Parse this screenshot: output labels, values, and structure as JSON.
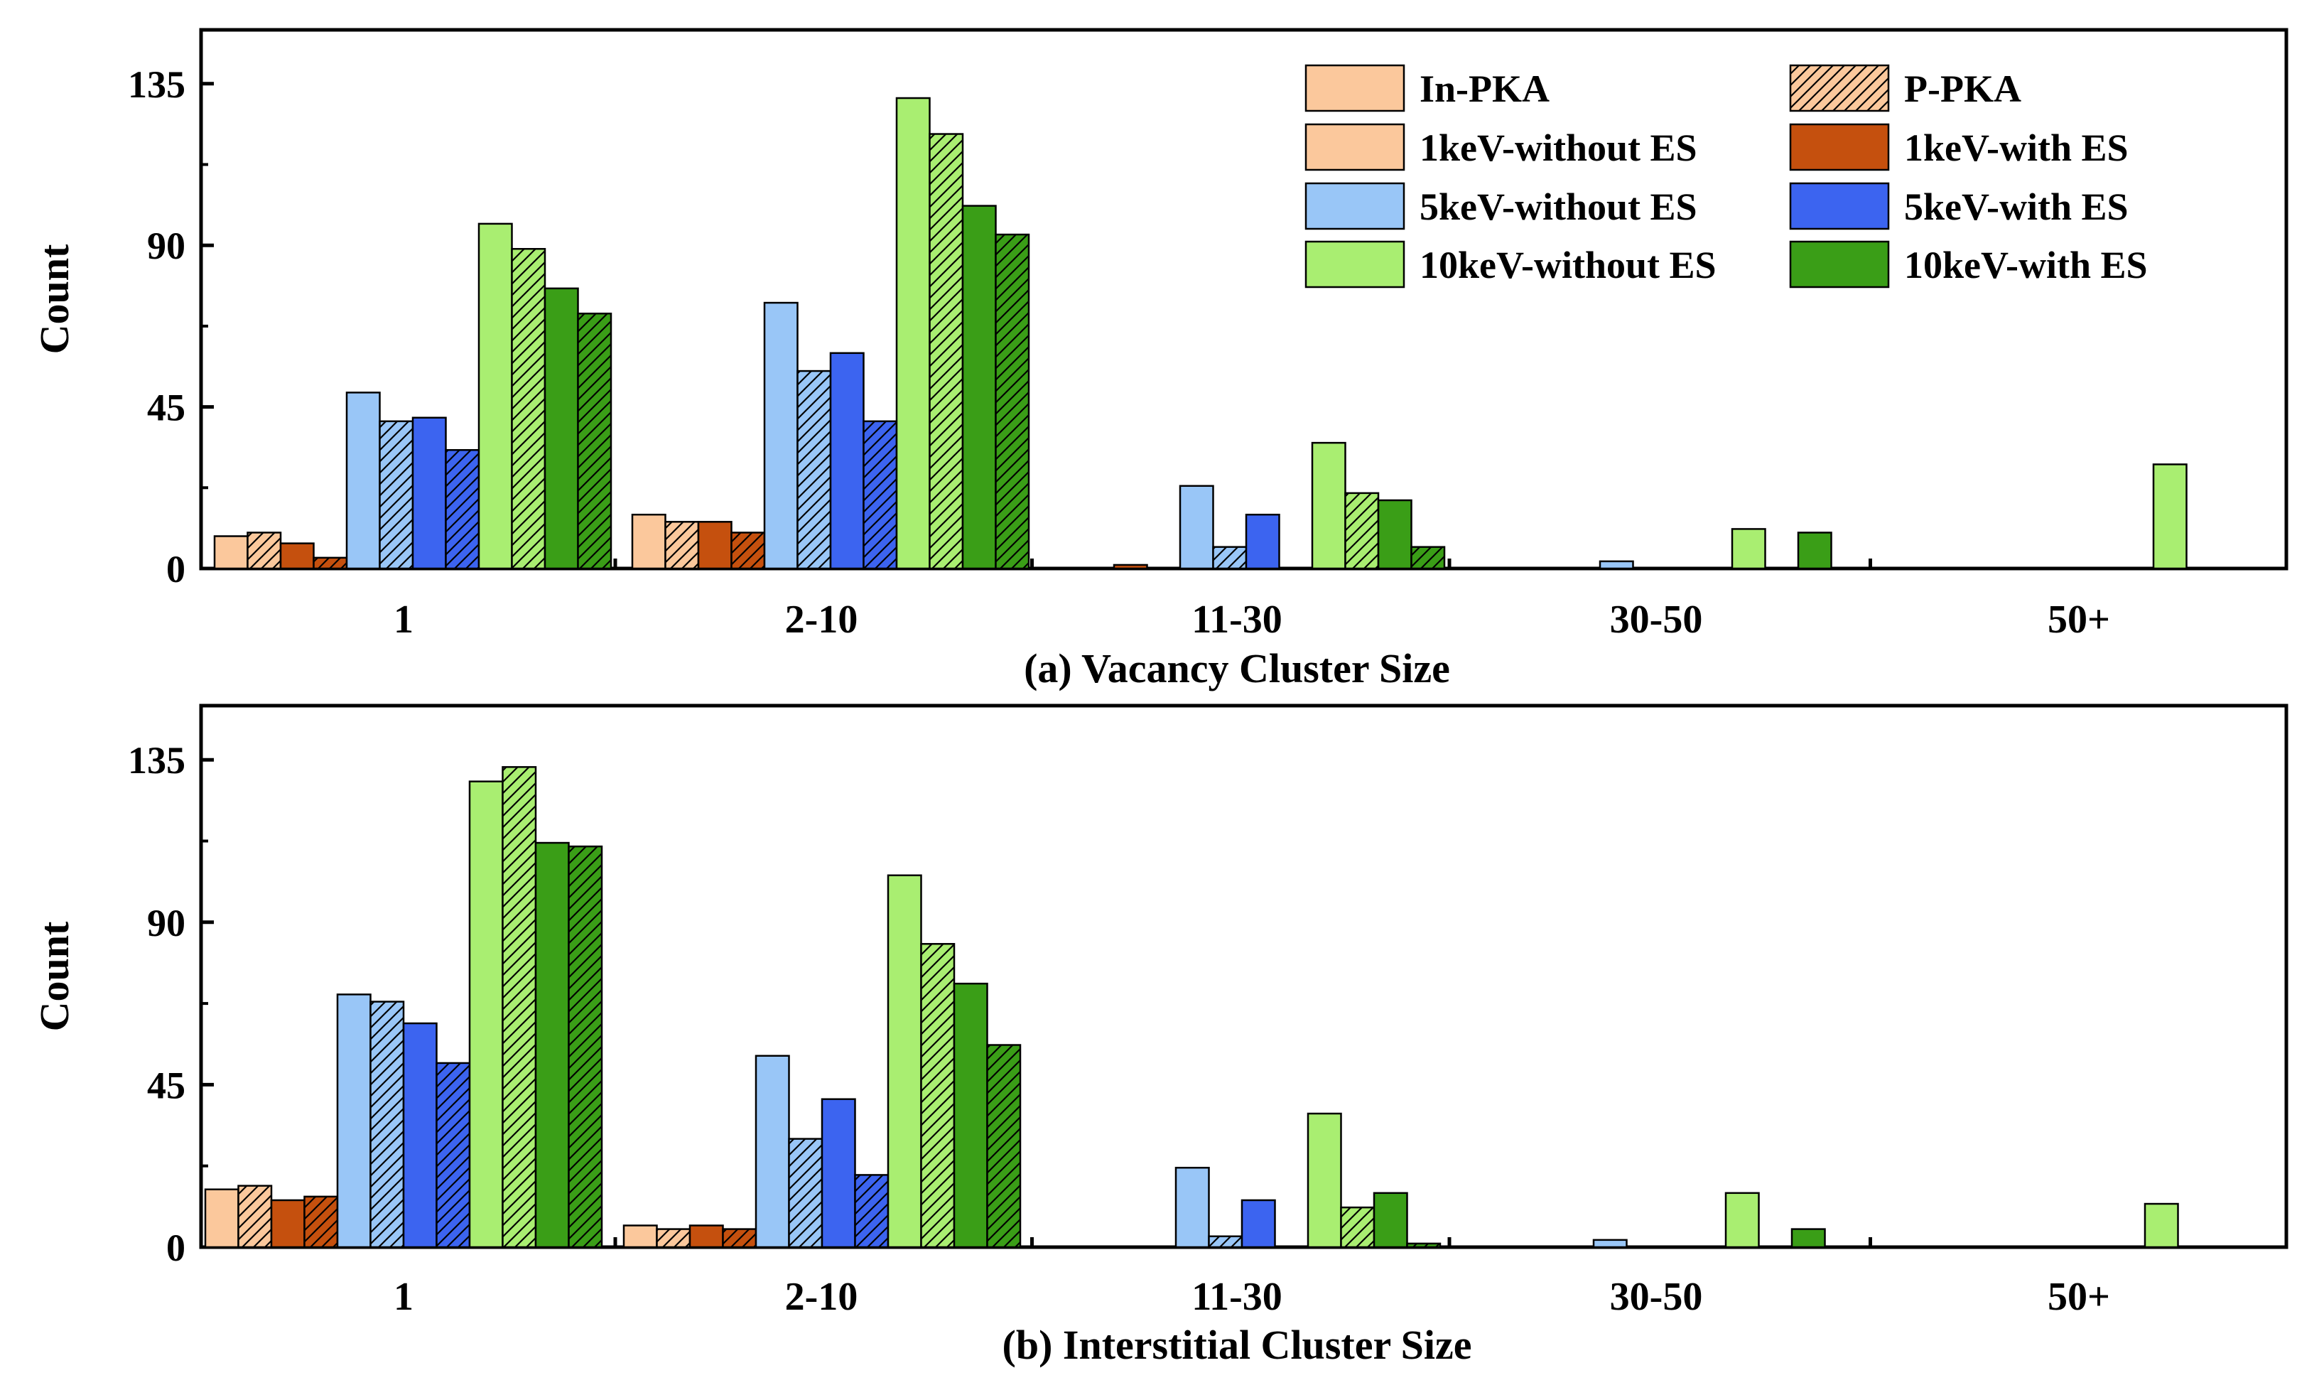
{
  "colors": {
    "c1_without": "#FBC89C",
    "c1_with": "#C5500E",
    "c5_without": "#99C6F7",
    "c5_with": "#3C64F0",
    "c10_without": "#A9EE71",
    "c10_with": "#3A9E17",
    "axis": "#000000"
  },
  "legend": {
    "items": [
      {
        "label": "In-PKA",
        "color_key": "c1_without",
        "hatch": false
      },
      {
        "label": "P-PKA",
        "color_key": "c1_without",
        "hatch": true
      },
      {
        "label": "1keV-without ES",
        "color_key": "c1_without",
        "hatch": false
      },
      {
        "label": "1keV-with ES",
        "color_key": "c1_with",
        "hatch": false
      },
      {
        "label": "5keV-without ES",
        "color_key": "c5_without",
        "hatch": false
      },
      {
        "label": "5keV-with ES",
        "color_key": "c5_with",
        "hatch": false
      },
      {
        "label": "10keV-without ES",
        "color_key": "c10_without",
        "hatch": false
      },
      {
        "label": "10keV-with ES",
        "color_key": "c10_with",
        "hatch": false
      }
    ]
  },
  "chart_data": [
    {
      "type": "bar",
      "title": "(a) Vacancy Cluster Size",
      "xlabel": "(a) Vacancy Cluster Size",
      "ylabel": "Count",
      "ylim": [
        0,
        150
      ],
      "yticks": [
        0,
        45,
        90,
        135
      ],
      "categories": [
        "1",
        "2-10",
        "11-30",
        "30-50",
        "50+"
      ],
      "series": [
        {
          "name": "1keV-without ES (In-PKA)",
          "color_key": "c1_without",
          "hatch": false,
          "values": [
            9,
            15,
            0,
            0,
            0
          ]
        },
        {
          "name": "1keV-without ES (P-PKA)",
          "color_key": "c1_without",
          "hatch": true,
          "values": [
            10,
            13,
            0,
            0,
            0
          ]
        },
        {
          "name": "1keV-with ES (In-PKA)",
          "color_key": "c1_with",
          "hatch": false,
          "values": [
            7,
            13,
            1,
            0,
            0
          ]
        },
        {
          "name": "1keV-with ES (P-PKA)",
          "color_key": "c1_with",
          "hatch": true,
          "values": [
            3,
            10,
            0,
            0,
            0
          ]
        },
        {
          "name": "5keV-without ES (In-PKA)",
          "color_key": "c5_without",
          "hatch": false,
          "values": [
            49,
            74,
            23,
            2,
            0
          ]
        },
        {
          "name": "5keV-without ES (P-PKA)",
          "color_key": "c5_without",
          "hatch": true,
          "values": [
            41,
            55,
            6,
            0,
            0
          ]
        },
        {
          "name": "5keV-with ES (In-PKA)",
          "color_key": "c5_with",
          "hatch": false,
          "values": [
            42,
            60,
            15,
            0,
            0
          ]
        },
        {
          "name": "5keV-with ES (P-PKA)",
          "color_key": "c5_with",
          "hatch": true,
          "values": [
            33,
            41,
            0,
            0,
            0
          ]
        },
        {
          "name": "10keV-without ES (In-PKA)",
          "color_key": "c10_without",
          "hatch": false,
          "values": [
            96,
            131,
            35,
            11,
            29
          ]
        },
        {
          "name": "10keV-without ES (P-PKA)",
          "color_key": "c10_without",
          "hatch": true,
          "values": [
            89,
            121,
            21,
            0,
            0
          ]
        },
        {
          "name": "10keV-with ES (In-PKA)",
          "color_key": "c10_with",
          "hatch": false,
          "values": [
            78,
            101,
            19,
            10,
            0
          ]
        },
        {
          "name": "10keV-with ES (P-PKA)",
          "color_key": "c10_with",
          "hatch": true,
          "values": [
            71,
            93,
            6,
            0,
            0
          ]
        }
      ]
    },
    {
      "type": "bar",
      "title": "(b) Interstitial Cluster Size",
      "xlabel": "(b) Interstitial Cluster Size",
      "ylabel": "Count",
      "ylim": [
        0,
        150
      ],
      "yticks": [
        0,
        45,
        90,
        135
      ],
      "categories": [
        "1",
        "2-10",
        "11-30",
        "30-50",
        "50+"
      ],
      "series": [
        {
          "name": "1keV-without ES (In-PKA)",
          "color_key": "c1_without",
          "hatch": false,
          "values": [
            16,
            6,
            0,
            0,
            0
          ]
        },
        {
          "name": "1keV-without ES (P-PKA)",
          "color_key": "c1_without",
          "hatch": true,
          "values": [
            17,
            5,
            0,
            0,
            0
          ]
        },
        {
          "name": "1keV-with ES (In-PKA)",
          "color_key": "c1_with",
          "hatch": false,
          "values": [
            13,
            6,
            0,
            0,
            0
          ]
        },
        {
          "name": "1keV-with ES (P-PKA)",
          "color_key": "c1_with",
          "hatch": true,
          "values": [
            14,
            5,
            0,
            0,
            0
          ]
        },
        {
          "name": "5keV-without ES (In-PKA)",
          "color_key": "c5_without",
          "hatch": false,
          "values": [
            70,
            53,
            22,
            2,
            0
          ]
        },
        {
          "name": "5keV-without ES (P-PKA)",
          "color_key": "c5_without",
          "hatch": true,
          "values": [
            68,
            30,
            3,
            0,
            0
          ]
        },
        {
          "name": "5keV-with ES (In-PKA)",
          "color_key": "c5_with",
          "hatch": false,
          "values": [
            62,
            41,
            13,
            0,
            0
          ]
        },
        {
          "name": "5keV-with ES (P-PKA)",
          "color_key": "c5_with",
          "hatch": true,
          "values": [
            51,
            20,
            0,
            0,
            0
          ]
        },
        {
          "name": "10keV-without ES (In-PKA)",
          "color_key": "c10_without",
          "hatch": false,
          "values": [
            129,
            103,
            37,
            15,
            12
          ]
        },
        {
          "name": "10keV-without ES (P-PKA)",
          "color_key": "c10_without",
          "hatch": true,
          "values": [
            133,
            84,
            11,
            0,
            0
          ]
        },
        {
          "name": "10keV-with ES (In-PKA)",
          "color_key": "c10_with",
          "hatch": false,
          "values": [
            112,
            73,
            15,
            5,
            0
          ]
        },
        {
          "name": "10keV-with ES (P-PKA)",
          "color_key": "c10_with",
          "hatch": true,
          "values": [
            111,
            56,
            1,
            0,
            0
          ]
        }
      ]
    }
  ]
}
